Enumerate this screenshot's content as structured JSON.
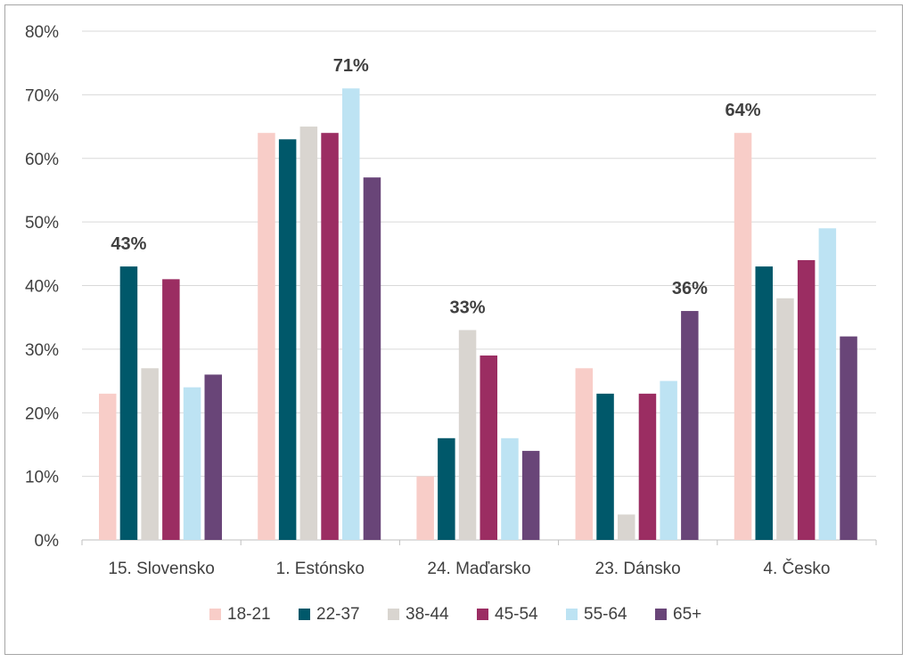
{
  "chart_data": {
    "type": "bar",
    "categories": [
      "15. Slovensko",
      "1. Estónsko",
      "24. Maďarsko",
      "23. Dánsko",
      "4. Česko"
    ],
    "series": [
      {
        "name": "18-21",
        "color": "#F8CDC8",
        "values": [
          23,
          64,
          10,
          27,
          64
        ]
      },
      {
        "name": "22-37",
        "color": "#00586A",
        "values": [
          43,
          63,
          16,
          23,
          43
        ]
      },
      {
        "name": "38-44",
        "color": "#D9D5D0",
        "values": [
          27,
          65,
          33,
          4,
          38
        ]
      },
      {
        "name": "45-54",
        "color": "#9B2D62",
        "values": [
          41,
          64,
          29,
          23,
          44
        ]
      },
      {
        "name": "55-64",
        "color": "#BDE3F3",
        "values": [
          24,
          71,
          16,
          25,
          49
        ]
      },
      {
        "name": "65+",
        "color": "#694578",
        "values": [
          26,
          57,
          14,
          36,
          32
        ]
      }
    ],
    "data_labels": [
      {
        "category": "15. Slovensko",
        "series": "22-37",
        "text": "43%"
      },
      {
        "category": "1. Estónsko",
        "series": "55-64",
        "text": "71%"
      },
      {
        "category": "24. Maďarsko",
        "series": "38-44",
        "text": "33%"
      },
      {
        "category": "23. Dánsko",
        "series": "65+",
        "text": "36%"
      },
      {
        "category": "4. Česko",
        "series": "18-21",
        "text": "64%"
      }
    ],
    "ylim": [
      0,
      80
    ],
    "yticks": [
      0,
      10,
      20,
      30,
      40,
      50,
      60,
      70,
      80
    ],
    "ytick_suffix": "%",
    "title": "",
    "xlabel": "",
    "ylabel": "",
    "grid": true,
    "legend_position": "bottom-center",
    "gridline_color": "#D9D9D9",
    "axis_line_color": "#BFBFBF",
    "text_color": "#404040"
  }
}
